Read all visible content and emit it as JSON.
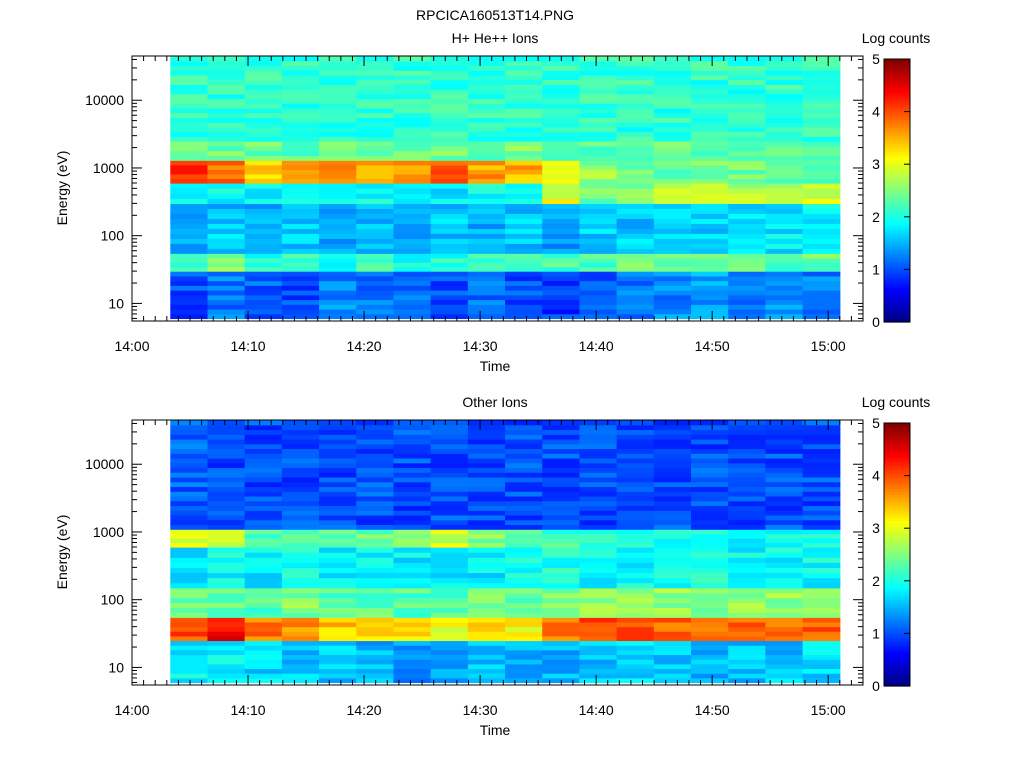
{
  "figure_title": "RPCICA160513T14.PNG",
  "colorscale": [
    "#00007f",
    "#0000ff",
    "#0080ff",
    "#00ffff",
    "#80ff80",
    "#ffff00",
    "#ff8000",
    "#ff0000",
    "#7f0000"
  ],
  "chart_data": [
    {
      "type": "heatmap",
      "title": "H+ He++ Ions",
      "xlabel": "Time",
      "ylabel": "Energy (eV)",
      "x_ticks": [
        "14:00",
        "14:10",
        "14:20",
        "14:30",
        "14:40",
        "14:50",
        "15:00"
      ],
      "x_range_minutes": [
        0,
        63
      ],
      "data_range_minutes": [
        3.3,
        61
      ],
      "y_scale": "log",
      "y_range": [
        5.5,
        45000
      ],
      "y_ticks": [
        "10",
        "100",
        "1000",
        "10000"
      ],
      "colorbar": {
        "label": "Log counts",
        "range": [
          0,
          5
        ],
        "ticks": [
          "0",
          "1",
          "2",
          "3",
          "4",
          "5"
        ]
      },
      "bands": [
        {
          "energy_low": 6,
          "energy_high": 30,
          "level": [
            1.0,
            1.2,
            1.1,
            1.0,
            1.3,
            1.2,
            1.1,
            1.0,
            1.2,
            1.0,
            0.9,
            1.0,
            1.2,
            1.3,
            1.4,
            1.2,
            1.3,
            1.2
          ]
        },
        {
          "energy_low": 30,
          "energy_high": 55,
          "level": [
            2.2,
            2.6,
            2.0,
            2.1,
            2.0,
            2.1,
            2.0,
            2.0,
            2.1,
            2.1,
            2.2,
            2.2,
            2.4,
            2.3,
            2.4,
            2.4,
            2.3,
            2.4
          ]
        },
        {
          "energy_low": 55,
          "energy_high": 300,
          "level": [
            1.5,
            1.6,
            1.5,
            1.6,
            1.5,
            1.6,
            1.5,
            1.6,
            1.5,
            1.6,
            1.4,
            1.6,
            1.6,
            1.6,
            1.7,
            1.7,
            1.8,
            1.8
          ]
        },
        {
          "energy_low": 300,
          "energy_high": 600,
          "level": [
            2.0,
            1.9,
            1.8,
            1.8,
            1.9,
            1.9,
            1.8,
            1.8,
            1.9,
            2.0,
            3.0,
            2.4,
            2.6,
            2.9,
            3.0,
            2.8,
            2.6,
            2.9
          ]
        },
        {
          "energy_low": 600,
          "energy_high": 1300,
          "level": [
            4.2,
            3.8,
            3.4,
            3.5,
            3.6,
            3.5,
            3.6,
            3.9,
            3.6,
            3.5,
            3.0,
            2.6,
            2.5,
            2.4,
            2.4,
            2.4,
            2.4,
            2.3
          ]
        },
        {
          "energy_low": 1300,
          "energy_high": 2500,
          "level": [
            2.5,
            2.4,
            2.4,
            2.3,
            2.4,
            2.4,
            2.4,
            2.4,
            2.4,
            2.5,
            2.4,
            2.3,
            2.3,
            2.4,
            2.3,
            2.3,
            2.3,
            2.3
          ]
        },
        {
          "energy_low": 2500,
          "energy_high": 45000,
          "level": [
            2.1,
            2.1,
            2.1,
            2.1,
            2.1,
            2.1,
            2.1,
            2.1,
            2.1,
            2.1,
            2.1,
            2.1,
            2.1,
            2.1,
            2.1,
            2.1,
            2.1,
            2.1
          ]
        }
      ]
    },
    {
      "type": "heatmap",
      "title": "Other Ions",
      "xlabel": "Time",
      "ylabel": "Energy (eV)",
      "x_ticks": [
        "14:00",
        "14:10",
        "14:20",
        "14:30",
        "14:40",
        "14:50",
        "15:00"
      ],
      "x_range_minutes": [
        0,
        63
      ],
      "data_range_minutes": [
        3.3,
        61
      ],
      "y_scale": "log",
      "y_range": [
        5.5,
        45000
      ],
      "y_ticks": [
        "10",
        "100",
        "1000",
        "10000"
      ],
      "colorbar": {
        "label": "Log counts",
        "range": [
          0,
          5
        ],
        "ticks": [
          "0",
          "1",
          "2",
          "3",
          "4",
          "5"
        ]
      },
      "bands": [
        {
          "energy_low": 6,
          "energy_high": 25,
          "level": [
            1.8,
            1.8,
            1.7,
            1.6,
            1.6,
            1.5,
            1.4,
            1.5,
            1.6,
            1.5,
            1.5,
            1.6,
            1.7,
            1.6,
            1.5,
            1.6,
            1.6,
            1.7
          ]
        },
        {
          "energy_low": 25,
          "energy_high": 55,
          "level": [
            4.0,
            4.4,
            3.8,
            3.6,
            3.4,
            3.3,
            3.2,
            3.0,
            3.2,
            3.1,
            3.8,
            4.0,
            4.0,
            3.9,
            3.9,
            3.9,
            3.9,
            3.9
          ]
        },
        {
          "energy_low": 55,
          "energy_high": 150,
          "level": [
            2.4,
            2.4,
            2.3,
            2.5,
            2.3,
            2.3,
            2.3,
            2.3,
            2.4,
            2.4,
            2.5,
            2.6,
            2.6,
            2.6,
            2.6,
            2.6,
            2.6,
            2.6
          ]
        },
        {
          "energy_low": 150,
          "energy_high": 600,
          "level": [
            1.8,
            1.9,
            1.8,
            2.0,
            1.8,
            1.9,
            1.8,
            1.8,
            1.8,
            1.9,
            2.0,
            1.9,
            1.9,
            1.9,
            2.0,
            1.9,
            1.9,
            1.9
          ]
        },
        {
          "energy_low": 600,
          "energy_high": 1100,
          "level": [
            2.9,
            2.8,
            2.3,
            2.2,
            2.4,
            2.4,
            2.5,
            2.9,
            2.5,
            2.3,
            2.2,
            2.1,
            2.1,
            2.0,
            2.0,
            1.9,
            1.9,
            1.9
          ]
        },
        {
          "energy_low": 1100,
          "energy_high": 45000,
          "level": [
            1.1,
            1.0,
            1.0,
            1.0,
            1.0,
            1.0,
            1.0,
            1.0,
            1.0,
            1.0,
            1.0,
            1.0,
            1.0,
            1.0,
            1.0,
            1.0,
            1.0,
            1.0
          ]
        }
      ]
    }
  ]
}
